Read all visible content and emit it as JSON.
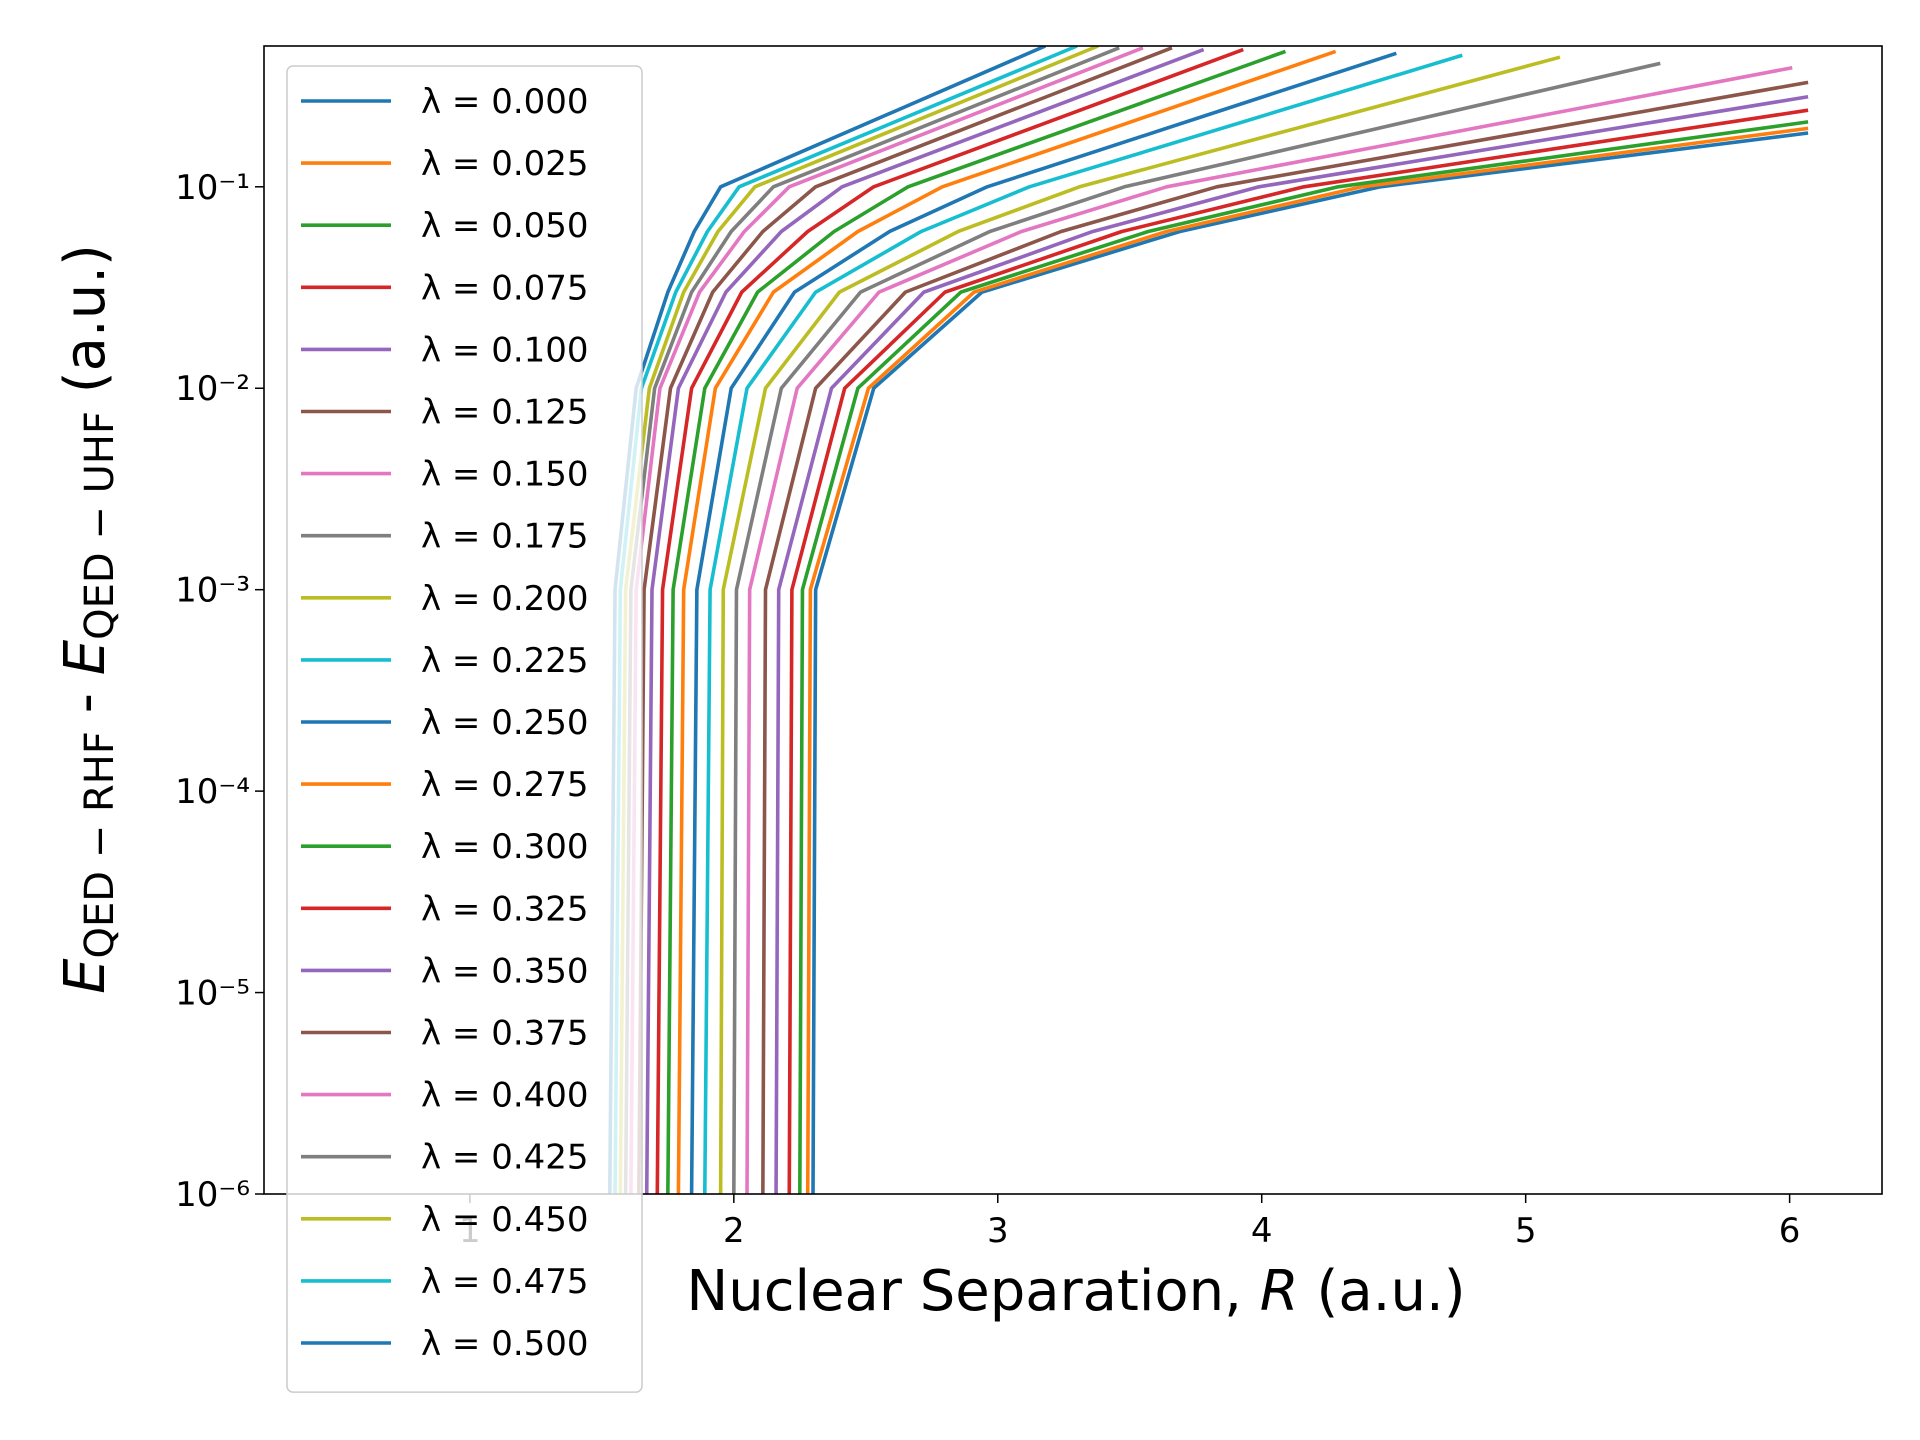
{
  "chart_data": {
    "type": "line",
    "xlabel": [
      {
        "text": "Nuclear Separation, "
      },
      {
        "text": "R",
        "role": "italic"
      },
      {
        "text": " (a.u.)"
      }
    ],
    "ylabel": [
      {
        "text": "E",
        "role": "italic"
      },
      {
        "text": "QED − RHF",
        "role": "sub"
      },
      {
        "text": " - "
      },
      {
        "text": "E",
        "role": "italic"
      },
      {
        "text": "QED − UHF",
        "role": "sub"
      },
      {
        "text": " (a.u.)"
      }
    ],
    "xlim": [
      0.22,
      6.35
    ],
    "xticks": [
      1,
      2,
      3,
      4,
      5,
      6
    ],
    "ylim": [
      1e-06,
      0.5
    ],
    "yscale": "log",
    "yticks": [
      {
        "value": 1e-06,
        "label": "10⁻⁶"
      },
      {
        "value": 1e-05,
        "label": "10⁻⁵"
      },
      {
        "value": 0.0001,
        "label": "10⁻⁴"
      },
      {
        "value": 0.001,
        "label": "10⁻³"
      },
      {
        "value": 0.01,
        "label": "10⁻²"
      },
      {
        "value": 0.1,
        "label": "10⁻¹"
      }
    ],
    "legend": "upper left",
    "series": [
      {
        "name": "λ = 0.000",
        "color": "#1f77b4",
        "x": [
          2.3,
          2.31,
          2.53,
          2.94,
          3.69,
          4.45,
          6.07
        ],
        "values": [
          1e-06,
          0.001,
          0.01,
          0.03,
          0.06,
          0.1,
          0.185
        ]
      },
      {
        "name": "λ = 0.025",
        "color": "#ff7f0e",
        "x": [
          2.28,
          2.29,
          2.51,
          2.91,
          3.64,
          4.38,
          6.07
        ],
        "values": [
          1e-06,
          0.001,
          0.01,
          0.03,
          0.06,
          0.1,
          0.195
        ]
      },
      {
        "name": "λ = 0.050",
        "color": "#2ca02c",
        "x": [
          2.25,
          2.26,
          2.47,
          2.86,
          3.57,
          4.29,
          6.07
        ],
        "values": [
          1e-06,
          0.001,
          0.01,
          0.03,
          0.06,
          0.1,
          0.21
        ]
      },
      {
        "name": "λ = 0.075",
        "color": "#d62728",
        "x": [
          2.21,
          2.22,
          2.42,
          2.8,
          3.47,
          4.16,
          6.07
        ],
        "values": [
          1e-06,
          0.001,
          0.01,
          0.03,
          0.06,
          0.1,
          0.24
        ]
      },
      {
        "name": "λ = 0.100",
        "color": "#9467bd",
        "x": [
          2.16,
          2.17,
          2.37,
          2.72,
          3.36,
          3.99,
          6.07
        ],
        "values": [
          1e-06,
          0.001,
          0.01,
          0.03,
          0.06,
          0.1,
          0.28
        ]
      },
      {
        "name": "λ = 0.125",
        "color": "#8c564b",
        "x": [
          2.11,
          2.12,
          2.31,
          2.65,
          3.24,
          3.83,
          6.07
        ],
        "values": [
          1e-06,
          0.001,
          0.01,
          0.03,
          0.06,
          0.1,
          0.33
        ]
      },
      {
        "name": "λ = 0.150",
        "color": "#e377c2",
        "x": [
          2.05,
          2.06,
          2.24,
          2.55,
          3.09,
          3.64,
          6.01
        ],
        "values": [
          1e-06,
          0.001,
          0.01,
          0.03,
          0.06,
          0.1,
          0.39
        ]
      },
      {
        "name": "λ = 0.175",
        "color": "#7f7f7f",
        "x": [
          2.0,
          2.01,
          2.18,
          2.48,
          2.97,
          3.48,
          5.51
        ],
        "values": [
          1e-06,
          0.001,
          0.01,
          0.03,
          0.06,
          0.1,
          0.41
        ]
      },
      {
        "name": "λ = 0.200",
        "color": "#bcbd22",
        "x": [
          1.95,
          1.96,
          2.12,
          2.4,
          2.85,
          3.31,
          5.13
        ],
        "values": [
          1e-06,
          0.001,
          0.01,
          0.03,
          0.06,
          0.1,
          0.44
        ]
      },
      {
        "name": "λ = 0.225",
        "color": "#17becf",
        "x": [
          1.89,
          1.91,
          2.05,
          2.31,
          2.71,
          3.12,
          4.76
        ],
        "values": [
          1e-06,
          0.001,
          0.01,
          0.03,
          0.06,
          0.1,
          0.45
        ]
      },
      {
        "name": "λ = 0.250",
        "color": "#1f77b4",
        "x": [
          1.84,
          1.86,
          1.99,
          2.23,
          2.59,
          2.96,
          4.51
        ],
        "values": [
          1e-06,
          0.001,
          0.01,
          0.03,
          0.06,
          0.1,
          0.46
        ]
      },
      {
        "name": "λ = 0.275",
        "color": "#ff7f0e",
        "x": [
          1.79,
          1.81,
          1.93,
          2.15,
          2.47,
          2.79,
          4.28
        ],
        "values": [
          1e-06,
          0.001,
          0.01,
          0.03,
          0.06,
          0.1,
          0.47
        ]
      },
      {
        "name": "λ = 0.300",
        "color": "#2ca02c",
        "x": [
          1.75,
          1.77,
          1.89,
          2.09,
          2.38,
          2.66,
          4.09
        ],
        "values": [
          1e-06,
          0.001,
          0.01,
          0.03,
          0.06,
          0.1,
          0.47
        ]
      },
      {
        "name": "λ = 0.325",
        "color": "#d62728",
        "x": [
          1.71,
          1.73,
          1.84,
          2.03,
          2.28,
          2.53,
          3.93
        ],
        "values": [
          1e-06,
          0.001,
          0.01,
          0.03,
          0.06,
          0.1,
          0.48
        ]
      },
      {
        "name": "λ = 0.350",
        "color": "#9467bd",
        "x": [
          1.67,
          1.69,
          1.79,
          1.97,
          2.18,
          2.41,
          3.78
        ],
        "values": [
          1e-06,
          0.001,
          0.01,
          0.03,
          0.06,
          0.1,
          0.48
        ]
      },
      {
        "name": "λ = 0.375",
        "color": "#8c564b",
        "x": [
          1.64,
          1.66,
          1.76,
          1.92,
          2.11,
          2.31,
          3.66
        ],
        "values": [
          1e-06,
          0.001,
          0.01,
          0.03,
          0.06,
          0.1,
          0.49
        ]
      },
      {
        "name": "λ = 0.400",
        "color": "#e377c2",
        "x": [
          1.61,
          1.63,
          1.72,
          1.87,
          2.04,
          2.21,
          3.55
        ],
        "values": [
          1e-06,
          0.001,
          0.01,
          0.03,
          0.06,
          0.1,
          0.49
        ]
      },
      {
        "name": "λ = 0.425",
        "color": "#7f7f7f",
        "x": [
          1.59,
          1.61,
          1.7,
          1.84,
          1.99,
          2.15,
          3.46
        ],
        "values": [
          1e-06,
          0.001,
          0.01,
          0.03,
          0.06,
          0.1,
          0.49
        ]
      },
      {
        "name": "λ = 0.450",
        "color": "#bcbd22",
        "x": [
          1.57,
          1.59,
          1.68,
          1.81,
          1.94,
          2.08,
          3.38
        ],
        "values": [
          1e-06,
          0.001,
          0.01,
          0.03,
          0.06,
          0.1,
          0.5
        ]
      },
      {
        "name": "λ = 0.475",
        "color": "#17becf",
        "x": [
          1.55,
          1.57,
          1.65,
          1.78,
          1.9,
          2.02,
          3.3
        ],
        "values": [
          1e-06,
          0.001,
          0.01,
          0.03,
          0.06,
          0.1,
          0.5
        ]
      },
      {
        "name": "λ = 0.500",
        "color": "#1f77b4",
        "x": [
          1.53,
          1.55,
          1.63,
          1.75,
          1.85,
          1.95,
          3.18
        ],
        "values": [
          1e-06,
          0.001,
          0.01,
          0.03,
          0.06,
          0.1,
          0.5
        ]
      }
    ]
  }
}
